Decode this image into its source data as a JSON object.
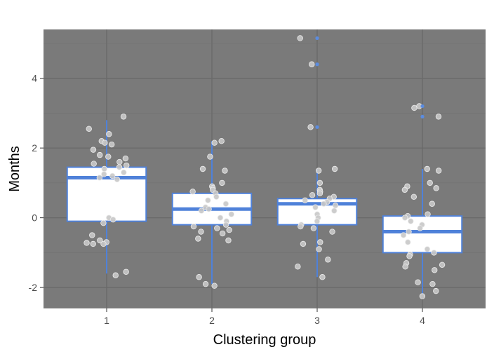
{
  "chart_data": {
    "type": "boxplot",
    "xlabel": "Clustering group",
    "ylabel": "Months",
    "categories": [
      "1",
      "2",
      "3",
      "4"
    ],
    "ylim": [
      -2.6,
      5.4
    ],
    "yticks": [
      -2,
      0,
      2,
      4
    ],
    "grid": true,
    "colors": {
      "panel": "#7a7a7a",
      "grid_major": "#6a6a6a",
      "grid_minor": "#727272",
      "box_fill": "#ffffff",
      "box_stroke": "#4f81d9",
      "point_fill": "#c8c8c8",
      "point_stroke": "#ececec",
      "outlier": "#5b8ce0"
    },
    "boxes": [
      {
        "group": "1",
        "q1": -0.1,
        "median": 1.15,
        "q3": 1.45,
        "whisker_low": -1.6,
        "whisker_high": 2.8,
        "outliers": []
      },
      {
        "group": "2",
        "q1": -0.2,
        "median": 0.25,
        "q3": 0.7,
        "whisker_low": -1.9,
        "whisker_high": 2.2,
        "outliers": []
      },
      {
        "group": "3",
        "q1": -0.2,
        "median": 0.4,
        "q3": 0.55,
        "whisker_low": -1.7,
        "whisker_high": 1.4,
        "outliers": [
          2.6,
          4.4,
          5.15
        ]
      },
      {
        "group": "4",
        "q1": -1.0,
        "median": -0.4,
        "q3": 0.05,
        "whisker_low": -2.2,
        "whisker_high": 1.4,
        "outliers": [
          2.9,
          3.2
        ]
      }
    ],
    "points": [
      {
        "group": "1",
        "values": [
          2.9,
          2.55,
          2.4,
          2.2,
          2.15,
          2.1,
          1.95,
          1.8,
          1.75,
          1.7,
          1.6,
          1.55,
          1.5,
          1.45,
          1.4,
          1.3,
          1.25,
          1.2,
          1.15,
          1.1,
          0.0,
          -0.05,
          -0.15,
          -0.5,
          -0.65,
          -0.7,
          -0.72,
          -0.75,
          -0.75,
          -1.55,
          -1.65
        ]
      },
      {
        "group": "2",
        "values": [
          2.2,
          2.15,
          1.75,
          1.4,
          1.35,
          1.0,
          0.9,
          0.85,
          0.8,
          0.75,
          0.7,
          0.6,
          0.5,
          0.4,
          0.3,
          0.25,
          0.2,
          0.1,
          0.0,
          -0.1,
          -0.2,
          -0.25,
          -0.3,
          -0.35,
          -0.4,
          -0.45,
          -0.6,
          -0.65,
          -1.7,
          -1.9,
          -1.95
        ]
      },
      {
        "group": "3",
        "values": [
          5.15,
          4.4,
          2.6,
          1.4,
          1.35,
          1.0,
          0.8,
          0.75,
          0.7,
          0.65,
          0.6,
          0.55,
          0.5,
          0.45,
          0.4,
          0.35,
          0.3,
          0.2,
          0.1,
          0.0,
          -0.1,
          -0.2,
          -0.25,
          -0.3,
          -0.4,
          -0.7,
          -0.75,
          -0.9,
          -1.2,
          -1.4,
          -1.7
        ]
      },
      {
        "group": "4",
        "values": [
          3.2,
          3.15,
          2.9,
          1.4,
          1.35,
          1.0,
          0.9,
          0.85,
          0.8,
          0.6,
          0.4,
          0.1,
          0.05,
          0.0,
          -0.1,
          -0.2,
          -0.3,
          -0.4,
          -0.5,
          -0.7,
          -0.9,
          -1.0,
          -1.05,
          -1.1,
          -1.3,
          -1.35,
          -1.4,
          -1.5,
          -1.85,
          -1.9,
          -2.1,
          -2.25
        ]
      }
    ]
  }
}
